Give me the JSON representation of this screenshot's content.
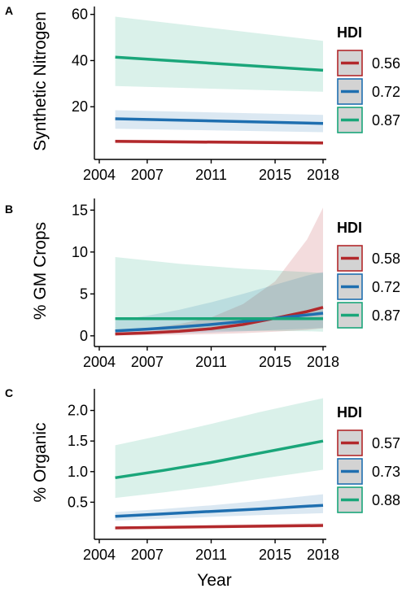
{
  "chart_data": [
    {
      "panel": "A",
      "type": "line",
      "ylabel": "Synthetic Nitrogen",
      "xlabel": "",
      "xlim": [
        2004,
        2018
      ],
      "ylim": [
        0,
        62
      ],
      "x_ticks": [
        2004,
        2007,
        2011,
        2015,
        2018
      ],
      "y_ticks": [
        20,
        40,
        60
      ],
      "grid": false,
      "legend": {
        "title": "HDI",
        "position": "right"
      },
      "series": [
        {
          "name": "0.56",
          "color": "#b2282b",
          "x": [
            2005,
            2018
          ],
          "y": [
            5.0,
            4.3
          ],
          "lower": [
            4.3,
            3.6
          ],
          "upper": [
            5.8,
            5.1
          ]
        },
        {
          "name": "0.72",
          "color": "#1f6fb0",
          "x": [
            2005,
            2018
          ],
          "y": [
            14.8,
            12.8
          ],
          "lower": [
            10.5,
            9.0
          ],
          "upper": [
            18.5,
            16.5
          ]
        },
        {
          "name": "0.87",
          "color": "#1aa67a",
          "x": [
            2005,
            2018
          ],
          "y": [
            41.5,
            35.8
          ],
          "lower": [
            29.0,
            26.5
          ],
          "upper": [
            59.0,
            48.5
          ]
        }
      ]
    },
    {
      "panel": "B",
      "type": "line",
      "ylabel": "% GM Crops",
      "xlabel": "",
      "xlim": [
        2004,
        2018
      ],
      "ylim": [
        -0.5,
        16
      ],
      "x_ticks": [
        2004,
        2007,
        2011,
        2015,
        2018
      ],
      "y_ticks": [
        0,
        5,
        10,
        15
      ],
      "grid": false,
      "legend": {
        "title": "HDI",
        "position": "right"
      },
      "series": [
        {
          "name": "0.58",
          "color": "#b2282b",
          "x": [
            2005,
            2007,
            2009,
            2011,
            2013,
            2015,
            2017,
            2018
          ],
          "y": [
            0.22,
            0.34,
            0.55,
            0.85,
            1.35,
            2.1,
            2.9,
            3.4
          ],
          "lower": [
            0.04,
            0.07,
            0.12,
            0.2,
            0.32,
            0.5,
            0.7,
            0.9
          ],
          "upper": [
            0.7,
            0.9,
            1.4,
            2.2,
            3.8,
            6.5,
            11.5,
            15.3
          ]
        },
        {
          "name": "0.72",
          "color": "#1f6fb0",
          "x": [
            2005,
            2007,
            2009,
            2011,
            2013,
            2015,
            2017,
            2018
          ],
          "y": [
            0.6,
            0.8,
            1.05,
            1.35,
            1.7,
            2.1,
            2.5,
            2.7
          ],
          "lower": [
            0.15,
            0.22,
            0.3,
            0.4,
            0.55,
            0.7,
            0.85,
            0.95
          ],
          "upper": [
            1.8,
            2.4,
            3.1,
            4.0,
            5.0,
            6.1,
            7.2,
            7.6
          ]
        },
        {
          "name": "0.87",
          "color": "#1aa67a",
          "x": [
            2005,
            2007,
            2009,
            2011,
            2013,
            2015,
            2017,
            2018
          ],
          "y": [
            2.05,
            2.05,
            2.05,
            2.05,
            2.05,
            2.05,
            2.05,
            2.05
          ],
          "lower": [
            0.7,
            0.7,
            0.65,
            0.65,
            0.6,
            0.6,
            0.55,
            0.5
          ],
          "upper": [
            9.4,
            9.0,
            8.6,
            8.3,
            8.0,
            7.8,
            7.6,
            7.5
          ]
        }
      ]
    },
    {
      "panel": "C",
      "type": "line",
      "ylabel": "% Organic",
      "xlabel": "Year",
      "xlim": [
        2004,
        2018
      ],
      "ylim": [
        0,
        2.3
      ],
      "x_ticks": [
        2004,
        2007,
        2011,
        2015,
        2018
      ],
      "y_ticks": [
        0.5,
        1.0,
        1.5,
        2.0
      ],
      "y_tick_labels": [
        "0.5",
        "1.0",
        "1.5",
        "2.0"
      ],
      "grid": false,
      "legend": {
        "title": "HDI",
        "position": "right"
      },
      "series": [
        {
          "name": "0.57",
          "color": "#b2282b",
          "x": [
            2005,
            2018
          ],
          "y": [
            0.08,
            0.12
          ],
          "lower": [
            0.06,
            0.09
          ],
          "upper": [
            0.1,
            0.16
          ]
        },
        {
          "name": "0.73",
          "color": "#1f6fb0",
          "x": [
            2005,
            2008,
            2011,
            2014,
            2018
          ],
          "y": [
            0.27,
            0.31,
            0.35,
            0.39,
            0.45
          ],
          "lower": [
            0.2,
            0.23,
            0.26,
            0.29,
            0.32
          ],
          "upper": [
            0.34,
            0.39,
            0.45,
            0.52,
            0.63
          ]
        },
        {
          "name": "0.88",
          "color": "#1aa67a",
          "x": [
            2005,
            2008,
            2011,
            2014,
            2018
          ],
          "y": [
            0.9,
            1.02,
            1.15,
            1.3,
            1.5
          ],
          "lower": [
            0.57,
            0.66,
            0.76,
            0.88,
            1.03
          ],
          "upper": [
            1.43,
            1.6,
            1.78,
            1.97,
            2.2
          ]
        }
      ]
    }
  ]
}
